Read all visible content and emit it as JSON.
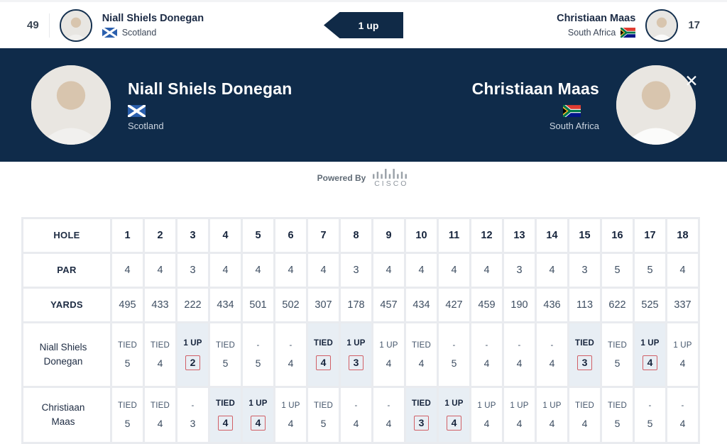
{
  "topbar": {
    "left_score": "49",
    "right_score": "17",
    "match_status": "1 up",
    "player1": {
      "name": "Niall Shiels Donegan",
      "country": "Scotland"
    },
    "player2": {
      "name": "Christiaan Maas",
      "country": "South Africa"
    }
  },
  "banner": {
    "player1": {
      "name": "Niall Shiels Donegan",
      "country": "Scotland"
    },
    "player2": {
      "name": "Christiaan Maas",
      "country": "South Africa"
    },
    "close_icon": "✕"
  },
  "powered_by": {
    "label": "Powered By",
    "brand": "CISCO"
  },
  "icons": {
    "player1_flag": "scotland-flag-icon",
    "player2_flag": "south-africa-flag-icon",
    "avatar": "player-photo-avatar",
    "close": "close-icon",
    "brand": "cisco-logo-icon"
  },
  "colors": {
    "navy": "#0f2b4a",
    "badge_navy": "#102a47",
    "highlight": "#e8eef4",
    "box_red": "#d15f66",
    "label_bg": "#f4f5f7",
    "grid_gap": "#e9ebef"
  },
  "scorecard": {
    "row_labels": {
      "hole": "HOLE",
      "par": "PAR",
      "yards": "YARDS"
    },
    "holes": [
      1,
      2,
      3,
      4,
      5,
      6,
      7,
      8,
      9,
      10,
      11,
      12,
      13,
      14,
      15,
      16,
      17,
      18
    ],
    "par": [
      4,
      4,
      3,
      4,
      4,
      4,
      4,
      3,
      4,
      4,
      4,
      4,
      3,
      4,
      3,
      5,
      5,
      4
    ],
    "yards": [
      495,
      433,
      222,
      434,
      501,
      502,
      307,
      178,
      457,
      434,
      427,
      459,
      190,
      436,
      113,
      622,
      525,
      337
    ],
    "players": [
      {
        "name": "Niall Shiels Donegan",
        "cells": [
          {
            "status": "TIED",
            "score": "5",
            "won": false,
            "boxed": false
          },
          {
            "status": "TIED",
            "score": "4",
            "won": false,
            "boxed": false
          },
          {
            "status": "1 UP",
            "score": "2",
            "won": true,
            "boxed": true
          },
          {
            "status": "TIED",
            "score": "5",
            "won": false,
            "boxed": false
          },
          {
            "status": "-",
            "score": "5",
            "won": false,
            "boxed": false
          },
          {
            "status": "-",
            "score": "4",
            "won": false,
            "boxed": false
          },
          {
            "status": "TIED",
            "score": "4",
            "won": true,
            "boxed": true
          },
          {
            "status": "1 UP",
            "score": "3",
            "won": true,
            "boxed": true
          },
          {
            "status": "1 UP",
            "score": "4",
            "won": false,
            "boxed": false
          },
          {
            "status": "TIED",
            "score": "4",
            "won": false,
            "boxed": false
          },
          {
            "status": "-",
            "score": "5",
            "won": false,
            "boxed": false
          },
          {
            "status": "-",
            "score": "4",
            "won": false,
            "boxed": false
          },
          {
            "status": "-",
            "score": "4",
            "won": false,
            "boxed": false
          },
          {
            "status": "-",
            "score": "4",
            "won": false,
            "boxed": false
          },
          {
            "status": "TIED",
            "score": "3",
            "won": true,
            "boxed": true
          },
          {
            "status": "TIED",
            "score": "5",
            "won": false,
            "boxed": false
          },
          {
            "status": "1 UP",
            "score": "4",
            "won": true,
            "boxed": true
          },
          {
            "status": "1 UP",
            "score": "4",
            "won": false,
            "boxed": false
          }
        ]
      },
      {
        "name": "Christiaan Maas",
        "cells": [
          {
            "status": "TIED",
            "score": "5",
            "won": false,
            "boxed": false
          },
          {
            "status": "TIED",
            "score": "4",
            "won": false,
            "boxed": false
          },
          {
            "status": "-",
            "score": "3",
            "won": false,
            "boxed": false
          },
          {
            "status": "TIED",
            "score": "4",
            "won": true,
            "boxed": true
          },
          {
            "status": "1 UP",
            "score": "4",
            "won": true,
            "boxed": true
          },
          {
            "status": "1 UP",
            "score": "4",
            "won": false,
            "boxed": false
          },
          {
            "status": "TIED",
            "score": "5",
            "won": false,
            "boxed": false
          },
          {
            "status": "-",
            "score": "4",
            "won": false,
            "boxed": false
          },
          {
            "status": "-",
            "score": "4",
            "won": false,
            "boxed": false
          },
          {
            "status": "TIED",
            "score": "3",
            "won": true,
            "boxed": true
          },
          {
            "status": "1 UP",
            "score": "4",
            "won": true,
            "boxed": true
          },
          {
            "status": "1 UP",
            "score": "4",
            "won": false,
            "boxed": false
          },
          {
            "status": "1 UP",
            "score": "4",
            "won": false,
            "boxed": false
          },
          {
            "status": "1 UP",
            "score": "4",
            "won": false,
            "boxed": false
          },
          {
            "status": "TIED",
            "score": "4",
            "won": false,
            "boxed": false
          },
          {
            "status": "TIED",
            "score": "5",
            "won": false,
            "boxed": false
          },
          {
            "status": "-",
            "score": "5",
            "won": false,
            "boxed": false
          },
          {
            "status": "-",
            "score": "4",
            "won": false,
            "boxed": false
          }
        ]
      }
    ]
  }
}
